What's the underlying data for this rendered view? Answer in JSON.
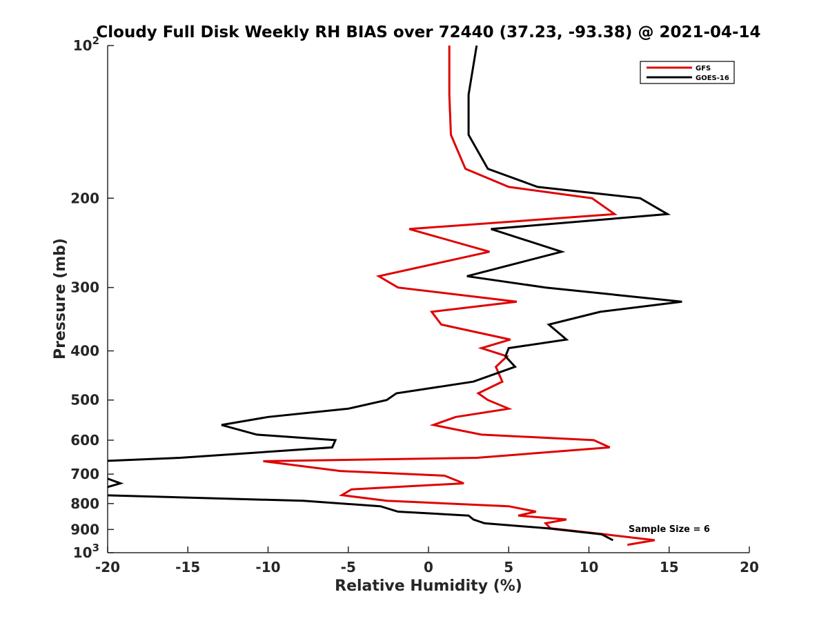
{
  "chart_data": {
    "type": "line",
    "title": "Cloudy Full Disk Weekly RH BIAS over 72440 (37.23, -93.38) @ 2021-04-14",
    "xlabel": "Relative Humidity (%)",
    "ylabel": "Pressure (mb)",
    "xlim": [
      -20,
      20
    ],
    "ylim": [
      100,
      1000
    ],
    "y_scale": "log",
    "y_reversed": true,
    "x_ticks": [
      -20,
      -15,
      -10,
      -5,
      0,
      5,
      10,
      15,
      20
    ],
    "x_tick_labels": [
      "-20",
      "-15",
      "-10",
      "-5",
      "0",
      "5",
      "10",
      "15",
      "20"
    ],
    "y_ticks": [
      100,
      200,
      300,
      400,
      500,
      600,
      700,
      800,
      900,
      1000
    ],
    "y_tick_labels": [
      "",
      "200",
      "300",
      "400",
      "500",
      "600",
      "700",
      "800",
      "900",
      ""
    ],
    "y_tick_sci": [
      {
        "value": 100,
        "base": "10",
        "exp": "2"
      },
      {
        "value": 1000,
        "base": "10",
        "exp": "3"
      }
    ],
    "grid": false,
    "legend_position": "top-right",
    "annotation": "Sample Size = 6",
    "series": [
      {
        "name": "GFS",
        "color": "#e00000",
        "points": [
          [
            1.3,
            100
          ],
          [
            1.3,
            125
          ],
          [
            1.4,
            150
          ],
          [
            2.3,
            175
          ],
          [
            5.0,
            190
          ],
          [
            10.2,
            200
          ],
          [
            11.6,
            215
          ],
          [
            -1.2,
            230
          ],
          [
            3.8,
            255
          ],
          [
            -3.1,
            285
          ],
          [
            -1.9,
            300
          ],
          [
            5.5,
            320
          ],
          [
            0.2,
            335
          ],
          [
            0.8,
            355
          ],
          [
            5.1,
            380
          ],
          [
            3.3,
            395
          ],
          [
            4.9,
            410
          ],
          [
            4.2,
            430
          ],
          [
            4.6,
            460
          ],
          [
            3.1,
            485
          ],
          [
            3.7,
            500
          ],
          [
            5.0,
            520
          ],
          [
            1.7,
            540
          ],
          [
            0.3,
            560
          ],
          [
            3.3,
            585
          ],
          [
            10.3,
            600
          ],
          [
            11.3,
            620
          ],
          [
            3.0,
            650
          ],
          [
            -10.3,
            660
          ],
          [
            -5.5,
            690
          ],
          [
            1.0,
            705
          ],
          [
            2.2,
            730
          ],
          [
            -4.8,
            750
          ],
          [
            -5.4,
            770
          ],
          [
            -2.6,
            790
          ],
          [
            5.0,
            810
          ],
          [
            6.7,
            830
          ],
          [
            5.6,
            845
          ],
          [
            8.6,
            860
          ],
          [
            7.3,
            875
          ],
          [
            7.6,
            895
          ],
          [
            11.0,
            920
          ],
          [
            14.1,
            945
          ],
          [
            12.4,
            965
          ]
        ]
      },
      {
        "name": "GOES-16",
        "color": "#000000",
        "points": [
          [
            3.0,
            100
          ],
          [
            2.5,
            125
          ],
          [
            2.5,
            150
          ],
          [
            3.7,
            175
          ],
          [
            6.8,
            190
          ],
          [
            13.2,
            200
          ],
          [
            14.9,
            215
          ],
          [
            3.9,
            230
          ],
          [
            8.3,
            255
          ],
          [
            2.4,
            285
          ],
          [
            7.3,
            300
          ],
          [
            15.8,
            320
          ],
          [
            10.7,
            335
          ],
          [
            7.5,
            355
          ],
          [
            8.6,
            380
          ],
          [
            5.0,
            395
          ],
          [
            4.8,
            410
          ],
          [
            5.4,
            430
          ],
          [
            2.8,
            460
          ],
          [
            -2.0,
            485
          ],
          [
            -2.6,
            500
          ],
          [
            -5.0,
            520
          ],
          [
            -10.0,
            540
          ],
          [
            -12.9,
            560
          ],
          [
            -10.7,
            585
          ],
          [
            -5.8,
            600
          ],
          [
            -6.0,
            620
          ],
          [
            -15.5,
            650
          ],
          [
            -20.5,
            660
          ],
          [
            -20.5,
            705
          ],
          [
            -19.2,
            730
          ],
          [
            -20.5,
            750
          ],
          [
            -20.5,
            770
          ],
          [
            -7.8,
            790
          ],
          [
            -3.0,
            810
          ],
          [
            -1.9,
            830
          ],
          [
            2.5,
            845
          ],
          [
            2.8,
            860
          ],
          [
            3.5,
            875
          ],
          [
            7.4,
            895
          ],
          [
            10.8,
            920
          ],
          [
            11.5,
            945
          ]
        ]
      }
    ]
  }
}
